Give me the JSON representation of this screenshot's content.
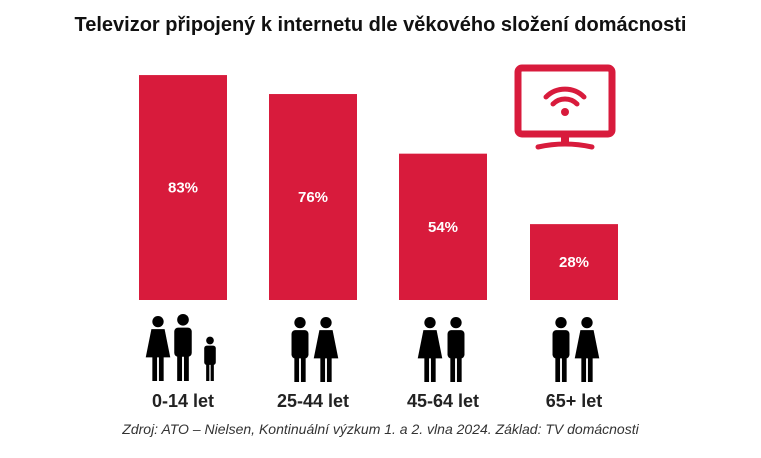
{
  "chart_data": {
    "type": "bar",
    "title": "Televizor připojený k internetu dle věkového složení domácnosti",
    "categories": [
      "0-14 let",
      "25-44 let",
      "45-64 let",
      "65+ let"
    ],
    "values": [
      83,
      76,
      54,
      28
    ],
    "value_labels": [
      "83%",
      "76%",
      "54%",
      "28%"
    ],
    "category_icons": [
      "family-with-child-icon",
      "young-couple-icon",
      "middle-aged-couple-icon",
      "senior-couple-icon"
    ],
    "xlabel": "",
    "ylabel": "",
    "ylim": [
      0,
      100
    ],
    "grid": false,
    "bar_color": "#d81b3c",
    "source": "Zdroj: ATO – Nielsen, Kontinuální výzkum 1. a 2. vlna 2024. Základ: TV domácnosti"
  }
}
